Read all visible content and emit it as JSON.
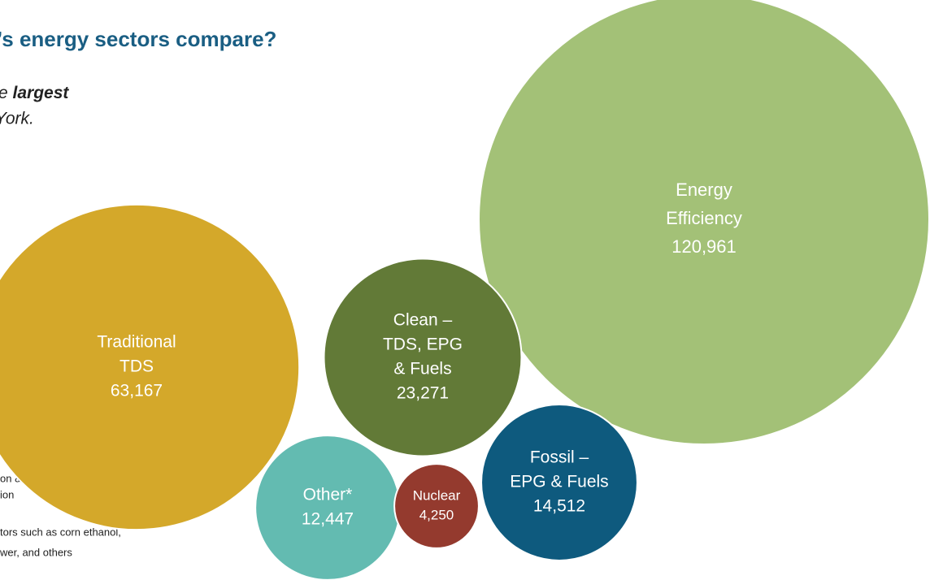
{
  "chart_data": {
    "type": "bubble",
    "title": "’s energy sectors compare?",
    "subtitle": [
      "e",
      "largest",
      "York."
    ],
    "notes": [
      "on & Storage",
      "ion",
      "tors such as corn ethanol,",
      "wer, and others"
    ],
    "categories": [
      [
        "Energy",
        "Efficiency"
      ],
      [
        "Traditional",
        "TDS"
      ],
      [
        "Clean –",
        "TDS, EPG",
        "& Fuels"
      ],
      [
        "Fossil –",
        "EPG & Fuels"
      ],
      [
        "Other*"
      ],
      [
        "Nuclear"
      ]
    ],
    "values": [
      120961,
      63167,
      23271,
      14512,
      12447,
      4250
    ],
    "value_labels": [
      "120,961",
      "63,167",
      "23,271",
      "14,512",
      "12,447",
      "4,250"
    ],
    "colors": [
      "#a3c177",
      "#d4a82a",
      "#627a37",
      "#0e5a7e",
      "#63bbb1",
      "#943a2e"
    ]
  }
}
